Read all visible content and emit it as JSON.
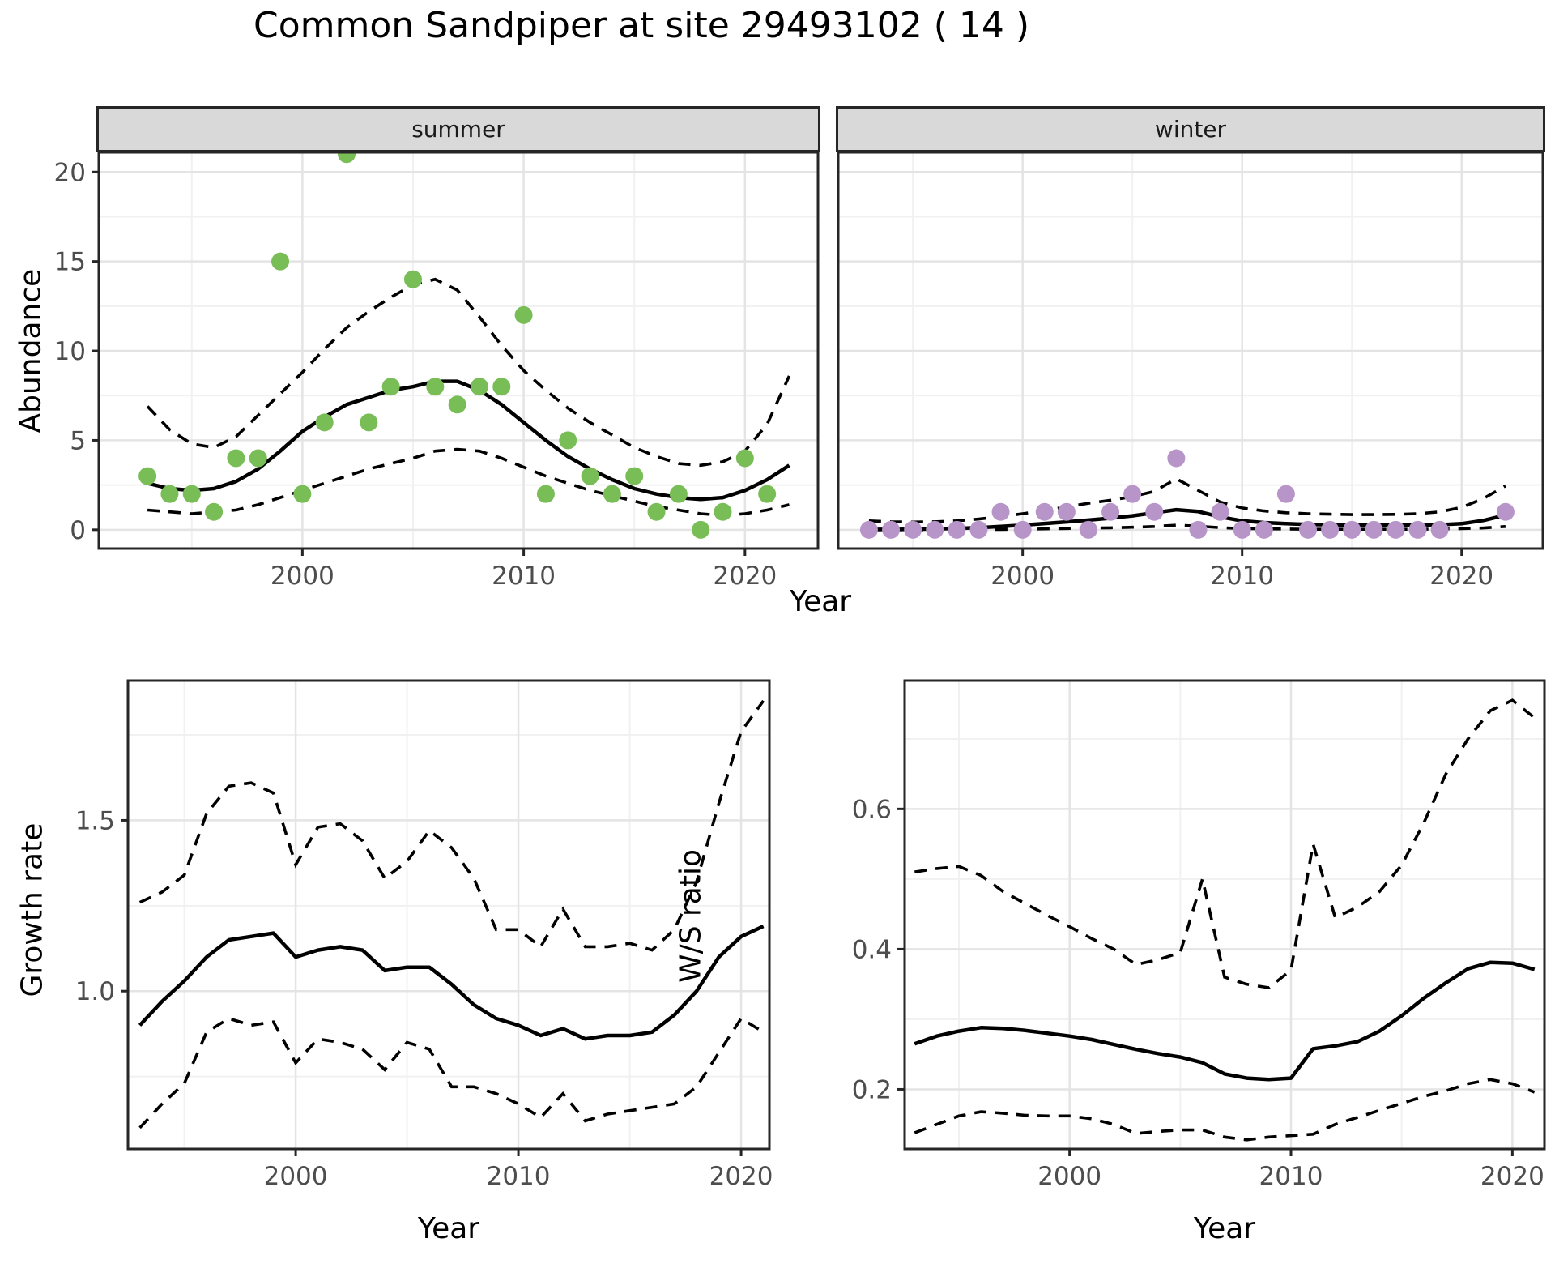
{
  "title": "Common Sandpiper at site 29493102 ( 14 )",
  "labels": {
    "top_ylabel": "Abundance",
    "top_xlabel": "Year",
    "growth_ylabel": "Growth rate",
    "growth_xlabel": "Year",
    "ws_ylabel": "W/S ratio",
    "ws_xlabel": "Year",
    "facet_summer": "summer",
    "facet_winter": "winter"
  },
  "colors": {
    "summer_point": "#79BD57",
    "winter_point": "#B795C9",
    "line": "#000000",
    "strip_bg": "#D9D9D9",
    "panel_border": "#262626",
    "grid_major": "#E4E4E4",
    "grid_minor": "#F1F1F1",
    "tick_text": "#4D4D4D"
  },
  "chart_data": [
    {
      "type": "scatter",
      "facet": "summer",
      "xlabel": "Year",
      "ylabel": "Abundance",
      "xlim": [
        1990.8,
        2023.3
      ],
      "ylim": [
        -1.05,
        21.1
      ],
      "x_tick_values": [
        2000,
        2010,
        2020
      ],
      "x_tick_labels": [
        "2000",
        "2010",
        "2020"
      ],
      "x_minor": [
        1995,
        2005,
        2015
      ],
      "y_tick_values": [
        0,
        5,
        10,
        15,
        20
      ],
      "y_tick_labels": [
        "0",
        "5",
        "10",
        "15",
        "20"
      ],
      "y_minor": [
        2.5,
        7.5,
        12.5,
        17.5
      ],
      "point_color": "#79BD57",
      "points": [
        [
          1993,
          3
        ],
        [
          1994,
          2
        ],
        [
          1995,
          2
        ],
        [
          1996,
          1
        ],
        [
          1997,
          4
        ],
        [
          1998,
          4
        ],
        [
          1999,
          15
        ],
        [
          2000,
          2
        ],
        [
          2001,
          6
        ],
        [
          2002,
          21
        ],
        [
          2003,
          6
        ],
        [
          2004,
          8
        ],
        [
          2005,
          14
        ],
        [
          2006,
          8
        ],
        [
          2007,
          7
        ],
        [
          2008,
          8
        ],
        [
          2009,
          8
        ],
        [
          2010,
          12
        ],
        [
          2011,
          2
        ],
        [
          2012,
          5
        ],
        [
          2013,
          3
        ],
        [
          2014,
          2
        ],
        [
          2015,
          3
        ],
        [
          2016,
          1
        ],
        [
          2017,
          2
        ],
        [
          2018,
          0
        ],
        [
          2019,
          1
        ],
        [
          2020,
          4
        ],
        [
          2021,
          2
        ]
      ],
      "line_years": [
        1993,
        1994,
        1995,
        1996,
        1997,
        1998,
        1999,
        2000,
        2001,
        2002,
        2003,
        2004,
        2005,
        2006,
        2007,
        2008,
        2009,
        2010,
        2011,
        2012,
        2013,
        2014,
        2015,
        2016,
        2017,
        2018,
        2019,
        2020,
        2021,
        2022
      ],
      "fit": [
        2.6,
        2.3,
        2.2,
        2.3,
        2.7,
        3.4,
        4.4,
        5.5,
        6.3,
        7.0,
        7.4,
        7.8,
        8.0,
        8.3,
        8.3,
        7.8,
        7.0,
        6.0,
        5.0,
        4.1,
        3.4,
        2.8,
        2.3,
        2.0,
        1.8,
        1.7,
        1.8,
        2.2,
        2.8,
        3.6
      ],
      "upper": [
        6.9,
        5.6,
        4.8,
        4.6,
        5.2,
        6.4,
        7.6,
        8.8,
        10.1,
        11.3,
        12.2,
        13.0,
        13.7,
        14.0,
        13.4,
        11.9,
        10.3,
        8.9,
        7.8,
        6.8,
        6.0,
        5.3,
        4.6,
        4.1,
        3.7,
        3.6,
        3.8,
        4.4,
        5.9,
        8.6
      ],
      "lower": [
        1.1,
        1.0,
        0.9,
        1.0,
        1.1,
        1.4,
        1.8,
        2.2,
        2.6,
        3.0,
        3.4,
        3.7,
        4.0,
        4.4,
        4.5,
        4.4,
        4.0,
        3.5,
        3.0,
        2.6,
        2.2,
        1.9,
        1.6,
        1.3,
        1.1,
        0.9,
        0.8,
        0.9,
        1.1,
        1.4
      ]
    },
    {
      "type": "scatter",
      "facet": "winter",
      "xlabel": "Year",
      "ylabel": "Abundance",
      "xlim": [
        1991.6,
        2023.7
      ],
      "ylim": [
        -1.05,
        21.1
      ],
      "x_tick_values": [
        2000,
        2010,
        2020
      ],
      "x_tick_labels": [
        "2000",
        "2010",
        "2020"
      ],
      "x_minor": [
        1995,
        2005,
        2015
      ],
      "y_tick_values": [
        0,
        5,
        10,
        15,
        20
      ],
      "y_tick_labels": [
        "0",
        "5",
        "10",
        "15",
        "20"
      ],
      "y_minor": [
        2.5,
        7.5,
        12.5,
        17.5
      ],
      "point_color": "#B795C9",
      "points": [
        [
          1993,
          0
        ],
        [
          1994,
          0
        ],
        [
          1995,
          0
        ],
        [
          1996,
          0
        ],
        [
          1997,
          0
        ],
        [
          1998,
          0
        ],
        [
          1999,
          1
        ],
        [
          2000,
          0
        ],
        [
          2001,
          1
        ],
        [
          2002,
          1
        ],
        [
          2003,
          0
        ],
        [
          2004,
          1
        ],
        [
          2005,
          2
        ],
        [
          2006,
          1
        ],
        [
          2007,
          4
        ],
        [
          2008,
          0
        ],
        [
          2009,
          1
        ],
        [
          2010,
          0
        ],
        [
          2011,
          0
        ],
        [
          2012,
          2
        ],
        [
          2013,
          0
        ],
        [
          2014,
          0
        ],
        [
          2015,
          0
        ],
        [
          2016,
          0
        ],
        [
          2017,
          0
        ],
        [
          2018,
          0
        ],
        [
          2019,
          0
        ],
        [
          2022,
          1
        ]
      ],
      "line_years": [
        1993,
        1994,
        1995,
        1996,
        1997,
        1998,
        1999,
        2000,
        2001,
        2002,
        2003,
        2004,
        2005,
        2006,
        2007,
        2008,
        2009,
        2010,
        2011,
        2012,
        2013,
        2014,
        2015,
        2016,
        2017,
        2018,
        2019,
        2020,
        2021,
        2022
      ],
      "fit": [
        0.02,
        0.02,
        0.03,
        0.05,
        0.08,
        0.12,
        0.18,
        0.26,
        0.35,
        0.44,
        0.54,
        0.65,
        0.78,
        0.95,
        1.12,
        1.02,
        0.72,
        0.5,
        0.4,
        0.34,
        0.3,
        0.28,
        0.26,
        0.25,
        0.25,
        0.26,
        0.28,
        0.34,
        0.52,
        0.82
      ],
      "upper": [
        0.5,
        0.45,
        0.43,
        0.45,
        0.5,
        0.6,
        0.74,
        0.9,
        1.08,
        1.28,
        1.48,
        1.65,
        1.85,
        2.15,
        2.85,
        2.2,
        1.55,
        1.22,
        1.05,
        0.95,
        0.9,
        0.87,
        0.85,
        0.85,
        0.86,
        0.9,
        1.0,
        1.25,
        1.75,
        2.45
      ],
      "lower": [
        0.0,
        0.0,
        0.0,
        0.0,
        0.0,
        0.01,
        0.02,
        0.03,
        0.05,
        0.07,
        0.09,
        0.11,
        0.14,
        0.18,
        0.26,
        0.2,
        0.12,
        0.07,
        0.05,
        0.04,
        0.03,
        0.03,
        0.03,
        0.03,
        0.03,
        0.03,
        0.04,
        0.06,
        0.1,
        0.18
      ]
    },
    {
      "type": "line",
      "title": "Growth rate",
      "xlabel": "Year",
      "ylabel": "Growth rate",
      "xlim": [
        1992.47,
        2021.27
      ],
      "ylim": [
        0.538,
        1.909
      ],
      "x_tick_values": [
        2000,
        2010,
        2020
      ],
      "x_tick_labels": [
        "2000",
        "2010",
        "2020"
      ],
      "x_minor": [
        1995,
        2005,
        2015
      ],
      "y_tick_values": [
        1.0,
        1.5
      ],
      "y_tick_labels": [
        "1.0",
        "1.5"
      ],
      "y_minor": [
        0.75,
        1.25,
        1.75
      ],
      "line_years": [
        1993,
        1994,
        1995,
        1996,
        1997,
        1998,
        1999,
        2000,
        2001,
        2002,
        2003,
        2004,
        2005,
        2006,
        2007,
        2008,
        2009,
        2010,
        2011,
        2012,
        2013,
        2014,
        2015,
        2016,
        2017,
        2018,
        2019,
        2020,
        2021
      ],
      "fit": [
        0.9,
        0.97,
        1.03,
        1.1,
        1.15,
        1.16,
        1.17,
        1.1,
        1.12,
        1.13,
        1.12,
        1.06,
        1.07,
        1.07,
        1.02,
        0.96,
        0.92,
        0.9,
        0.87,
        0.89,
        0.86,
        0.87,
        0.87,
        0.88,
        0.93,
        1.0,
        1.1,
        1.16,
        1.19
      ],
      "upper": [
        1.26,
        1.29,
        1.34,
        1.52,
        1.6,
        1.61,
        1.58,
        1.37,
        1.48,
        1.49,
        1.44,
        1.33,
        1.38,
        1.47,
        1.42,
        1.33,
        1.18,
        1.18,
        1.13,
        1.24,
        1.13,
        1.13,
        1.14,
        1.12,
        1.18,
        1.32,
        1.55,
        1.76,
        1.85
      ],
      "lower": [
        0.6,
        0.67,
        0.73,
        0.88,
        0.92,
        0.9,
        0.91,
        0.79,
        0.86,
        0.85,
        0.83,
        0.77,
        0.85,
        0.83,
        0.72,
        0.72,
        0.7,
        0.67,
        0.63,
        0.7,
        0.62,
        0.64,
        0.65,
        0.66,
        0.67,
        0.72,
        0.82,
        0.92,
        0.88
      ]
    },
    {
      "type": "line",
      "title": "W/S ratio",
      "xlabel": "Year",
      "ylabel": "W/S ratio",
      "xlim": [
        1992.55,
        2021.45
      ],
      "ylim": [
        0.115,
        0.783
      ],
      "x_tick_values": [
        2000,
        2010,
        2020
      ],
      "x_tick_labels": [
        "2000",
        "2010",
        "2020"
      ],
      "x_minor": [
        1995,
        2005,
        2015
      ],
      "y_tick_values": [
        0.2,
        0.4,
        0.6
      ],
      "y_tick_labels": [
        "0.2",
        "0.4",
        "0.6"
      ],
      "y_minor": [
        0.3,
        0.5,
        0.7
      ],
      "line_years": [
        1993,
        1994,
        1995,
        1996,
        1997,
        1998,
        1999,
        2000,
        2001,
        2002,
        2003,
        2004,
        2005,
        2006,
        2007,
        2008,
        2009,
        2010,
        2011,
        2012,
        2013,
        2014,
        2015,
        2016,
        2017,
        2018,
        2019,
        2020,
        2021
      ],
      "fit": [
        0.265,
        0.276,
        0.283,
        0.288,
        0.287,
        0.284,
        0.28,
        0.276,
        0.271,
        0.264,
        0.257,
        0.251,
        0.246,
        0.238,
        0.222,
        0.216,
        0.214,
        0.216,
        0.258,
        0.262,
        0.268,
        0.283,
        0.305,
        0.33,
        0.352,
        0.372,
        0.381,
        0.38,
        0.371
      ],
      "upper": [
        0.51,
        0.515,
        0.518,
        0.505,
        0.482,
        0.465,
        0.448,
        0.432,
        0.415,
        0.4,
        0.378,
        0.385,
        0.395,
        0.5,
        0.36,
        0.35,
        0.345,
        0.37,
        0.55,
        0.445,
        0.46,
        0.482,
        0.52,
        0.58,
        0.65,
        0.7,
        0.74,
        0.755,
        0.73
      ],
      "lower": [
        0.138,
        0.15,
        0.162,
        0.168,
        0.166,
        0.163,
        0.162,
        0.162,
        0.158,
        0.15,
        0.137,
        0.14,
        0.142,
        0.142,
        0.132,
        0.128,
        0.132,
        0.134,
        0.136,
        0.15,
        0.16,
        0.17,
        0.18,
        0.19,
        0.198,
        0.208,
        0.214,
        0.208,
        0.196
      ]
    }
  ]
}
